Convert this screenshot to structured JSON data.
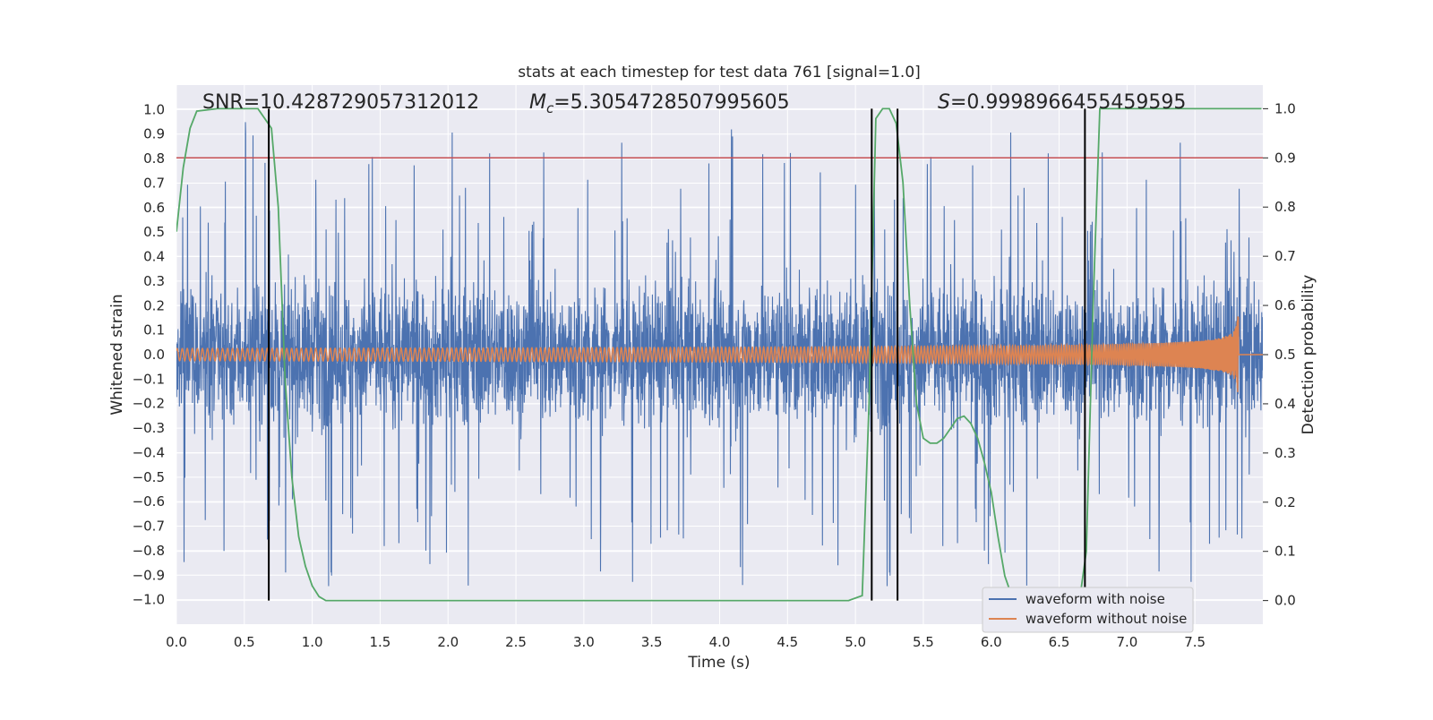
{
  "chart_data": {
    "type": "line",
    "title": "stats at each timestep for test data 761 [signal=1.0]",
    "xlabel": "Time (s)",
    "ylabel": "Whitened strain",
    "y2label": "Detection probability",
    "xlim": [
      0.0,
      8.0
    ],
    "ylim": [
      -1.1,
      1.1
    ],
    "y2lim": [
      -0.048,
      1.048
    ],
    "xticks": [
      "0.0",
      "0.5",
      "1.0",
      "1.5",
      "2.0",
      "2.5",
      "3.0",
      "3.5",
      "4.0",
      "4.5",
      "5.0",
      "5.5",
      "6.0",
      "6.5",
      "7.0",
      "7.5"
    ],
    "yticks": [
      "1.0",
      "0.9",
      "0.8",
      "0.7",
      "0.6",
      "0.5",
      "0.4",
      "0.3",
      "0.2",
      "0.1",
      "0.0",
      "−0.1",
      "−0.2",
      "−0.3",
      "−0.4",
      "−0.5",
      "−0.6",
      "−0.7",
      "−0.8",
      "−0.9",
      "−1.0"
    ],
    "y2ticks": [
      "1.0",
      "0.9",
      "0.8",
      "0.7",
      "0.6",
      "0.5",
      "0.4",
      "0.3",
      "0.2",
      "0.1",
      "0.0"
    ],
    "grid": true,
    "legend_position": "lower-right",
    "annotations": {
      "snr": "SNR=10.428729057312012",
      "mc_symbol": "M",
      "mc_sub": "c",
      "mc_value": "=5.3054728507995605",
      "s_symbol": "S",
      "s_value": "=0.9998966455459595"
    },
    "series": [
      {
        "name": "waveform with noise",
        "color": "#4c72b0",
        "envelope_max": 0.95,
        "envelope_min": -1.0
      },
      {
        "name": "waveform without noise",
        "color": "#dd8452",
        "amplitude_start": 0.025,
        "amplitude_peak": 0.26,
        "merger_time": 7.82
      },
      {
        "color": "#55a868",
        "axis": "right",
        "x": [
          0.0,
          0.05,
          0.1,
          0.15,
          0.3,
          0.6,
          0.65,
          0.7,
          0.75,
          0.8,
          0.85,
          0.9,
          0.95,
          1.0,
          1.05,
          1.1,
          1.15,
          1.2,
          1.5,
          2.0,
          3.0,
          4.0,
          4.5,
          4.8,
          4.95,
          5.05,
          5.1,
          5.15,
          5.2,
          5.25,
          5.3,
          5.35,
          5.4,
          5.45,
          5.5,
          5.55,
          5.6,
          5.65,
          5.7,
          5.75,
          5.8,
          5.85,
          5.9,
          5.95,
          6.0,
          6.05,
          6.1,
          6.15,
          6.2,
          6.3,
          6.5,
          6.6,
          6.65,
          6.7,
          6.75,
          6.8,
          7.0,
          7.5,
          7.99
        ],
        "values": [
          0.75,
          0.88,
          0.96,
          0.995,
          1.0,
          1.0,
          0.98,
          0.96,
          0.8,
          0.45,
          0.25,
          0.13,
          0.07,
          0.03,
          0.008,
          0.0,
          0.0,
          0.0,
          0.0,
          0.0,
          0.0,
          0.0,
          0.0,
          0.0,
          0.0,
          0.01,
          0.4,
          0.98,
          1.0,
          1.0,
          0.97,
          0.85,
          0.6,
          0.4,
          0.33,
          0.32,
          0.32,
          0.33,
          0.35,
          0.37,
          0.375,
          0.36,
          0.33,
          0.28,
          0.22,
          0.13,
          0.05,
          0.01,
          0.0,
          0.0,
          0.0,
          0.0,
          0.0,
          0.1,
          0.6,
          1.0,
          1.0,
          1.0,
          1.0
        ]
      }
    ],
    "threshold_line": {
      "value": 0.9,
      "axis": "right",
      "color": "#c44e52"
    },
    "vertical_lines": [
      0.68,
      5.12,
      5.31,
      6.69
    ]
  }
}
